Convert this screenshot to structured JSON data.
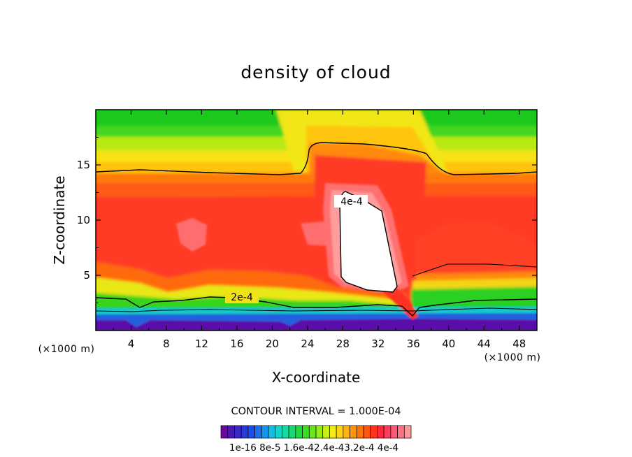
{
  "chart_data": {
    "type": "contour",
    "title": "density of cloud",
    "xlabel": "X-coordinate",
    "ylabel": "Z-coordinate",
    "x_unit": "(×1000 m)",
    "xlim": [
      0,
      50
    ],
    "ylim": [
      0,
      20
    ],
    "x_ticks": [
      4,
      8,
      12,
      16,
      20,
      24,
      28,
      32,
      36,
      40,
      44,
      48
    ],
    "y_ticks": [
      5,
      10,
      15
    ],
    "contour_interval_text": "CONTOUR INTERVAL = 1.000E-04",
    "contour_levels": [
      {
        "level": 0.0002,
        "label": "2e-4",
        "label_x": 16.6,
        "label_z": 3.0
      },
      {
        "level": 0.0004,
        "label": "4e-4",
        "label_x": 28.5,
        "label_z": 11.7
      }
    ],
    "colorbar": {
      "vmin": 1e-16,
      "vmax": 0.0004,
      "bins": 28,
      "tick_labels": [
        "1e-16",
        "8e-5",
        "1.6e-4",
        "2.4e-4",
        "3.2e-4",
        "4e-4"
      ],
      "label_text": "1e-16 8e-5 1.6e-42.4e-43.2e-4 4e-4"
    },
    "features": {
      "cloud_top_z": 14.3,
      "cloud_base_z": 2.7,
      "tower_x": [
        26.5,
        36.5
      ],
      "tower_top_z": 16.7,
      "core_x": [
        27.5,
        35.5
      ],
      "core_z": [
        3.3,
        12.5
      ],
      "max_density_text": "4e-4"
    }
  }
}
